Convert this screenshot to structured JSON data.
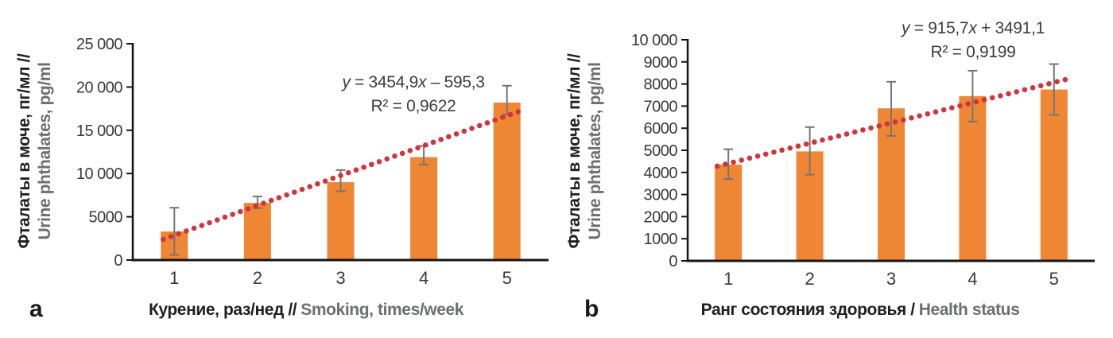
{
  "colors": {
    "bar": "#EF8633",
    "trend": "#D2343C",
    "error_bar": "#757575",
    "axis": "#151515",
    "text_primary": "#1F1F1F",
    "text_secondary": "#6D6E70",
    "tick_text": "#3A3A3A"
  },
  "panel_letters": {
    "a": "a",
    "b": "b"
  },
  "chart_data": [
    {
      "panel": "a",
      "type": "bar",
      "categories": [
        "1",
        "2",
        "3",
        "4",
        "5"
      ],
      "values": [
        3300,
        6600,
        9000,
        11900,
        18200
      ],
      "error_low": [
        600,
        6000,
        7950,
        11050,
        16800
      ],
      "error_high": [
        6050,
        7350,
        10400,
        13200,
        20150
      ],
      "trend": {
        "slope": 3454.9,
        "intercept": -595.3
      },
      "equation": {
        "var_y": "y",
        "mid": " = 3454,9",
        "var_x": "x",
        "tail": " – 595,3"
      },
      "r2": "R² = 0,9622",
      "ylabel_ru": "Фталаты в моче, пг/мл //",
      "ylabel_en": "Urine phthalates, pg/ml",
      "xlabel_ru": "Курение, раз/нед //",
      "xlabel_en": "Smoking, times/week",
      "ylim": [
        0,
        25000
      ],
      "ytick_step": 5000,
      "ytick_labels": [
        "0",
        "5000",
        "10 000",
        "15 000",
        "20 000",
        "25 000"
      ],
      "grid": false,
      "legend": "none"
    },
    {
      "panel": "b",
      "type": "bar",
      "categories": [
        "1",
        "2",
        "3",
        "4",
        "5"
      ],
      "values": [
        4350,
        4950,
        6900,
        7450,
        7750
      ],
      "error_low": [
        3700,
        3900,
        5650,
        6300,
        6600
      ],
      "error_high": [
        5050,
        6050,
        8100,
        8600,
        8900
      ],
      "trend": {
        "slope": 915.7,
        "intercept": 3491.1
      },
      "equation": {
        "var_y": "y",
        "mid": " = 915,7",
        "var_x": "x",
        "tail": " + 3491,1"
      },
      "r2": "R² = 0,9199",
      "ylabel_ru": "Фталаты в моче, пг/мл //",
      "ylabel_en": "Urine phthalates, pg/ml",
      "xlabel_ru": "Ранг состояния здоровья /",
      "xlabel_en": "Health status",
      "ylim": [
        0,
        10000
      ],
      "ytick_step": 1000,
      "ytick_labels": [
        "0",
        "1000",
        "2000",
        "3000",
        "4000",
        "5000",
        "6000",
        "7000",
        "8000",
        "9000",
        "10 000"
      ],
      "grid": false,
      "legend": "none"
    }
  ]
}
